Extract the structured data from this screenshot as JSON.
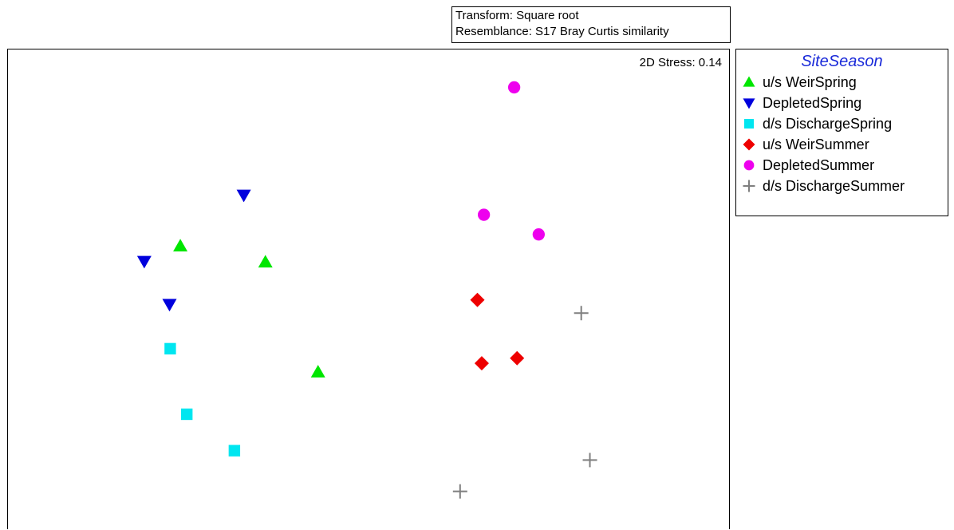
{
  "header": {
    "transform_label": "Transform: Square root",
    "resemblance_label": "Resemblance: S17 Bray Curtis similarity"
  },
  "plot": {
    "stress_label": "2D Stress: 0.14"
  },
  "legend": {
    "title": "SiteSeason"
  },
  "chart_data": {
    "type": "scatter",
    "title": "",
    "xlabel": "",
    "ylabel": "",
    "grid": false,
    "legend_position": "right-outside",
    "xlim": [
      0,
      100
    ],
    "ylim": [
      0,
      66
    ],
    "series": [
      {
        "name": "u/s WeirSpring",
        "marker": "triangle-up",
        "color": "#00e600",
        "points": [
          [
            23.9,
            39.0
          ],
          [
            35.7,
            36.8
          ],
          [
            43.0,
            21.7
          ]
        ]
      },
      {
        "name": "DepletedSpring",
        "marker": "triangle-down",
        "color": "#0000dd",
        "points": [
          [
            32.7,
            46.0
          ],
          [
            18.9,
            36.9
          ],
          [
            22.4,
            31.0
          ]
        ]
      },
      {
        "name": "d/s DischargeSpring",
        "marker": "square",
        "color": "#00e6f0",
        "points": [
          [
            22.5,
            24.9
          ],
          [
            24.8,
            15.9
          ],
          [
            31.4,
            10.9
          ]
        ]
      },
      {
        "name": "u/s WeirSummer",
        "marker": "diamond",
        "color": "#ee0000",
        "points": [
          [
            65.1,
            31.6
          ],
          [
            65.7,
            22.9
          ],
          [
            70.6,
            23.6
          ]
        ]
      },
      {
        "name": "DepletedSummer",
        "marker": "circle",
        "color": "#ee00ee",
        "points": [
          [
            70.2,
            60.8
          ],
          [
            66.0,
            43.3
          ],
          [
            73.6,
            40.6
          ]
        ]
      },
      {
        "name": "d/s DischargeSummer",
        "marker": "plus",
        "color": "#7f7f7f",
        "points": [
          [
            79.5,
            29.8
          ],
          [
            80.7,
            9.6
          ],
          [
            62.7,
            5.3
          ]
        ]
      }
    ]
  }
}
